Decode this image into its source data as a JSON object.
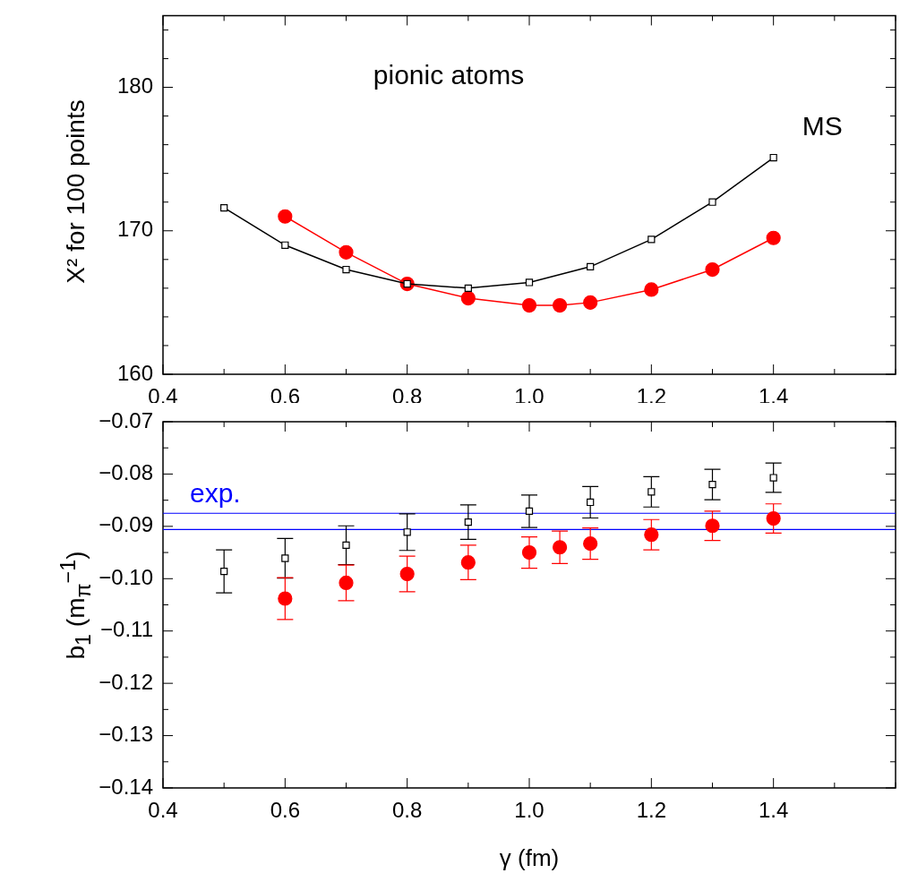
{
  "chart_data": [
    {
      "type": "line",
      "ylabel": "X² for 100 points",
      "annotations": [
        "pionic atoms",
        "MS"
      ],
      "xlim": [
        0.4,
        1.6
      ],
      "ylim": [
        160,
        185
      ],
      "xticks": [
        {
          "value": 0.4,
          "label": "0.4"
        },
        {
          "value": 0.5,
          "label": null
        },
        {
          "value": 0.6,
          "label": "0.6"
        },
        {
          "value": 0.7,
          "label": null
        },
        {
          "value": 0.8,
          "label": "0.8"
        },
        {
          "value": 0.9,
          "label": null
        },
        {
          "value": 1.0,
          "label": "1.0"
        },
        {
          "value": 1.1,
          "label": null
        },
        {
          "value": 1.2,
          "label": "1.2"
        },
        {
          "value": 1.3,
          "label": null
        },
        {
          "value": 1.4,
          "label": "1.4"
        },
        {
          "value": 1.5,
          "label": null
        },
        {
          "value": 1.6,
          "label": null
        }
      ],
      "yticks": [
        160,
        {
          "value": 162,
          "label": null
        },
        {
          "value": 164,
          "label": null
        },
        {
          "value": 166,
          "label": null
        },
        {
          "value": 168,
          "label": null
        },
        170,
        {
          "value": 172,
          "label": null
        },
        {
          "value": 174,
          "label": null
        },
        {
          "value": 176,
          "label": null
        },
        {
          "value": 178,
          "label": null
        },
        180,
        {
          "value": 182,
          "label": null
        },
        {
          "value": 184,
          "label": null
        }
      ],
      "series": [
        {
          "color": "#000000",
          "marker": "square",
          "x": [
            0.5,
            0.6,
            0.7,
            0.8,
            0.9,
            1.0,
            1.1,
            1.2,
            1.3,
            1.4
          ],
          "values": [
            171.6,
            169.0,
            167.3,
            166.3,
            166.0,
            166.4,
            167.5,
            169.4,
            172.0,
            175.1
          ]
        },
        {
          "color": "#ff0000",
          "marker": "circle",
          "x": [
            0.6,
            0.7,
            0.8,
            0.9,
            1.0,
            1.05,
            1.1,
            1.2,
            1.3,
            1.4
          ],
          "values": [
            171.0,
            168.5,
            166.3,
            165.3,
            164.8,
            164.8,
            165.0,
            165.9,
            167.3,
            169.5
          ]
        }
      ]
    },
    {
      "type": "scatter",
      "xlabel": "γ (fm)",
      "ylabel": "b$_{1}$ (m$_{π}$$^{−1}$)",
      "xlim": [
        0.4,
        1.6
      ],
      "ylim": [
        -0.14,
        -0.07
      ],
      "xticks": [
        {
          "value": 0.4,
          "label": "0.4"
        },
        {
          "value": 0.5,
          "label": null
        },
        {
          "value": 0.6,
          "label": "0.6"
        },
        {
          "value": 0.7,
          "label": null
        },
        {
          "value": 0.8,
          "label": "0.8"
        },
        {
          "value": 0.9,
          "label": null
        },
        {
          "value": 1.0,
          "label": "1.0"
        },
        {
          "value": 1.1,
          "label": null
        },
        {
          "value": 1.2,
          "label": "1.2"
        },
        {
          "value": 1.3,
          "label": null
        },
        {
          "value": 1.4,
          "label": "1.4"
        },
        {
          "value": 1.5,
          "label": null
        },
        {
          "value": 1.6,
          "label": null
        }
      ],
      "yticks": [
        {
          "value": -0.14,
          "label": "−0.14"
        },
        {
          "value": -0.135,
          "label": null
        },
        {
          "value": -0.13,
          "label": "−0.13"
        },
        {
          "value": -0.125,
          "label": null
        },
        {
          "value": -0.12,
          "label": "−0.12"
        },
        {
          "value": -0.115,
          "label": null
        },
        {
          "value": -0.11,
          "label": "−0.11"
        },
        {
          "value": -0.105,
          "label": null
        },
        {
          "value": -0.1,
          "label": "−0.10"
        },
        {
          "value": -0.095,
          "label": null
        },
        {
          "value": -0.09,
          "label": "−0.09"
        },
        {
          "value": -0.085,
          "label": null
        },
        {
          "value": -0.08,
          "label": "−0.08"
        },
        {
          "value": -0.075,
          "label": null
        },
        {
          "value": -0.07,
          "label": "−0.07"
        }
      ],
      "ref_lines": [
        {
          "axis": "y",
          "value": -0.0875,
          "label": "exp.",
          "color": "#0000ff"
        },
        {
          "axis": "y",
          "value": -0.0906,
          "color": "#0000ff"
        }
      ],
      "series": [
        {
          "color": "#000000",
          "marker": "square",
          "x": [
            0.5,
            0.6,
            0.7,
            0.8,
            0.9,
            1.0,
            1.1,
            1.2,
            1.3,
            1.4
          ],
          "values": [
            -0.0986,
            -0.0961,
            -0.0936,
            -0.0911,
            -0.0892,
            -0.0871,
            -0.0854,
            -0.0834,
            -0.082,
            -0.0807
          ],
          "errors": [
            0.0041,
            0.0038,
            0.0037,
            0.0035,
            0.0033,
            0.0031,
            0.003,
            0.0029,
            0.0029,
            0.0028
          ]
        },
        {
          "color": "#ff0000",
          "marker": "circle",
          "x": [
            0.6,
            0.7,
            0.8,
            0.9,
            1.0,
            1.05,
            1.1,
            1.2,
            1.3,
            1.4
          ],
          "values": [
            -0.1038,
            -0.1008,
            -0.0991,
            -0.0969,
            -0.095,
            -0.094,
            -0.0933,
            -0.0916,
            -0.0899,
            -0.0885
          ],
          "errors": [
            0.004,
            0.0034,
            0.0034,
            0.0033,
            0.003,
            0.0031,
            0.003,
            0.0029,
            0.0028,
            0.0028
          ]
        }
      ]
    }
  ]
}
